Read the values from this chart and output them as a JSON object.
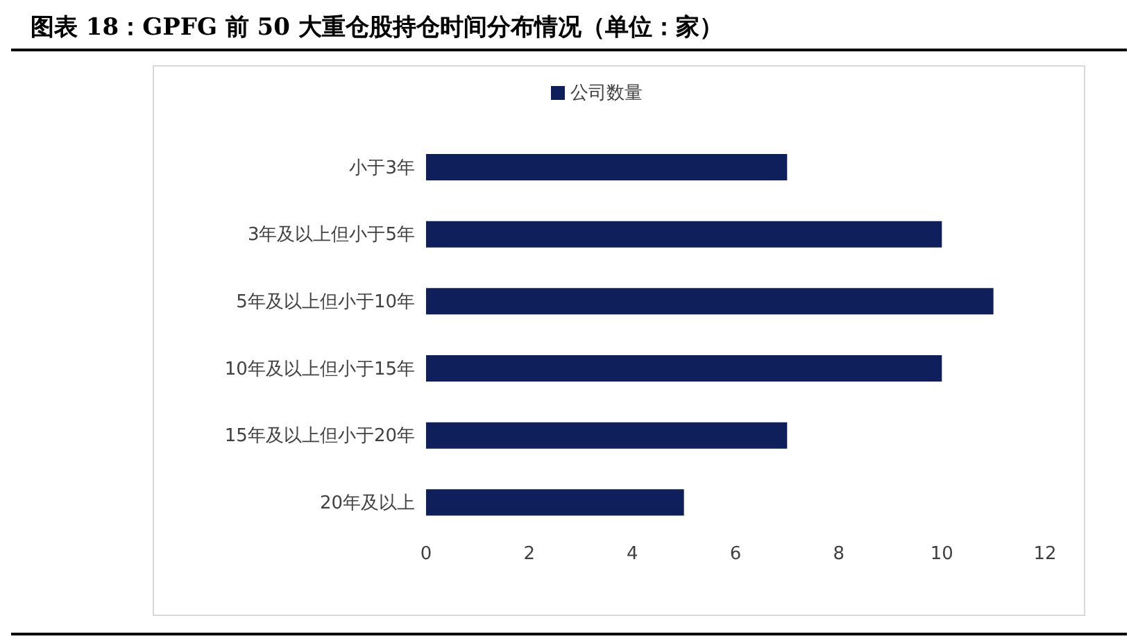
{
  "chart_data": {
    "type": "bar",
    "orientation": "horizontal",
    "title": "图表 18：GPFG 前 50 大重仓股持仓时间分布情况（单位：家）",
    "categories": [
      "小于3年",
      "3年及以上但小于5年",
      "5年及以上但小于10年",
      "10年及以上但小于15年",
      "15年及以上但小于20年",
      "20年及以上"
    ],
    "series": [
      {
        "name": "公司数量",
        "color": "#0f1f5c",
        "values": [
          7,
          10,
          11,
          10,
          7,
          5
        ]
      }
    ],
    "xlim": [
      0,
      12
    ],
    "xticks": [
      0,
      2,
      4,
      6,
      8,
      10,
      12
    ],
    "legend": "top",
    "grid": false
  }
}
